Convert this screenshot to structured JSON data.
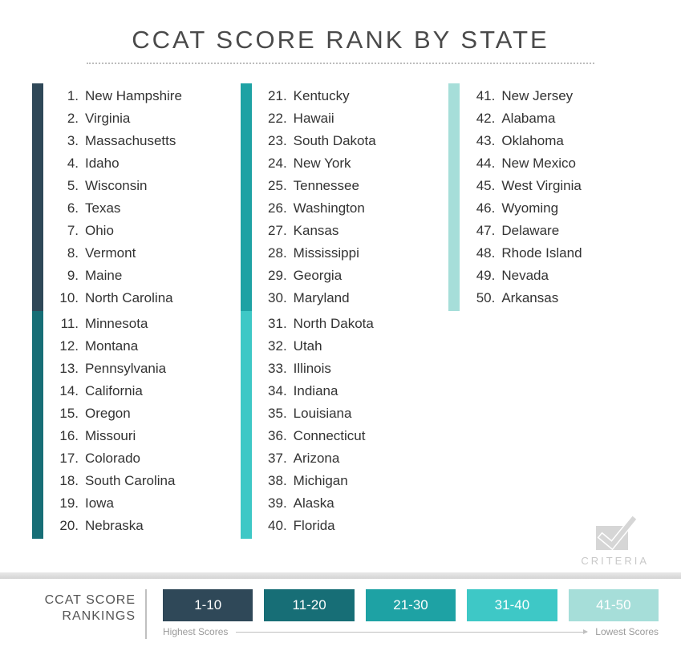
{
  "title": "CCAT SCORE RANK BY STATE",
  "colors": {
    "tier1": "#2f4858",
    "tier2": "#176e76",
    "tier3": "#1ea2a4",
    "tier4": "#3ec8c6",
    "tier5": "#a6ded9",
    "text_dark": "#333333",
    "text_muted": "#9a9a9a",
    "logo_gray": "#c9c9c9"
  },
  "columns": [
    {
      "groups": [
        {
          "color_key": "tier1",
          "start": 1,
          "states": [
            "New Hampshire",
            "Virginia",
            "Massachusetts",
            "Idaho",
            "Wisconsin",
            "Texas",
            "Ohio",
            "Vermont",
            "Maine",
            "North Carolina"
          ]
        },
        {
          "color_key": "tier2",
          "start": 11,
          "states": [
            "Minnesota",
            "Montana",
            "Pennsylvania",
            "California",
            "Oregon",
            "Missouri",
            "Colorado",
            "South Carolina",
            "Iowa",
            "Nebraska"
          ]
        }
      ]
    },
    {
      "groups": [
        {
          "color_key": "tier3",
          "start": 21,
          "states": [
            "Kentucky",
            "Hawaii",
            "South Dakota",
            "New York",
            "Tennessee",
            "Washington",
            "Kansas",
            "Mississippi",
            "Georgia",
            "Maryland"
          ]
        },
        {
          "color_key": "tier4",
          "start": 31,
          "states": [
            "North Dakota",
            "Utah",
            "Illinois",
            "Indiana",
            "Louisiana",
            "Connecticut",
            "Arizona",
            "Michigan",
            "Alaska",
            "Florida"
          ]
        }
      ]
    },
    {
      "groups": [
        {
          "color_key": "tier5",
          "start": 41,
          "states": [
            "New Jersey",
            "Alabama",
            "Oklahoma",
            "New Mexico",
            "West Virginia",
            "Wyoming",
            "Delaware",
            "Rhode Island",
            "Nevada",
            "Arkansas"
          ]
        }
      ]
    }
  ],
  "legend": {
    "label_line1": "CCAT SCORE",
    "label_line2": "RANKINGS",
    "blocks": [
      {
        "label": "1-10",
        "color_key": "tier1"
      },
      {
        "label": "11-20",
        "color_key": "tier2"
      },
      {
        "label": "21-30",
        "color_key": "tier3"
      },
      {
        "label": "31-40",
        "color_key": "tier4"
      },
      {
        "label": "41-50",
        "color_key": "tier5"
      }
    ],
    "scale_left": "Highest Scores",
    "scale_right": "Lowest Scores"
  },
  "logo_text": "CRITERIA"
}
